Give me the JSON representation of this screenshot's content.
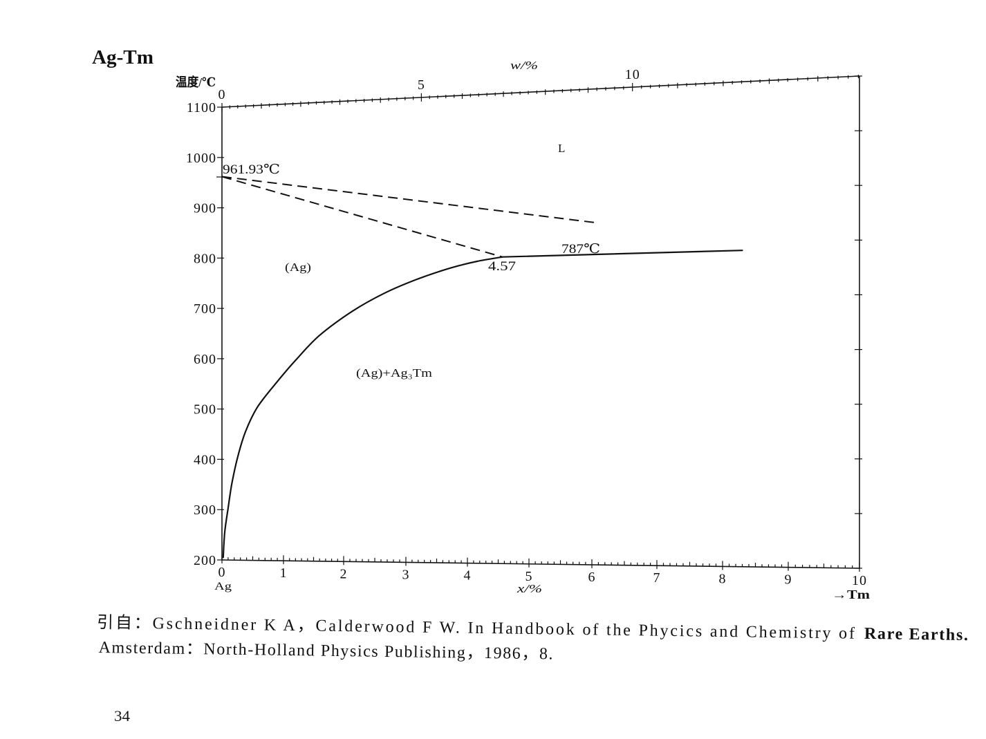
{
  "page": {
    "page_number": "34"
  },
  "citation": {
    "line1": "引自：Gschneidner K A，Calderwood F W. In Handbook of the Phycics and Chemistry of",
    "line1_bold": "Rare Earths.",
    "line2": "Amsterdam：North-Holland Physics Publishing，1986，8."
  },
  "chart_data": {
    "type": "line",
    "title": "Ag-Tm",
    "ylabel": "温度/℃",
    "xlabel": "x/%",
    "x2label": "w/%",
    "x_start_label": "Ag",
    "x_end_label": "→Tm",
    "xlim": [
      0,
      10
    ],
    "ylim": [
      200,
      1100
    ],
    "x_ticks": [
      0,
      1,
      2,
      3,
      4,
      5,
      6,
      7,
      8,
      9,
      10
    ],
    "x2_ticks": [
      0,
      5,
      10
    ],
    "y_ticks": [
      200,
      300,
      400,
      500,
      600,
      700,
      800,
      900,
      1000,
      1100
    ],
    "grid": false,
    "series": [
      {
        "line_style": "solid",
        "points": [
          [
            0.02,
            205
          ],
          [
            0.045,
            255
          ],
          [
            0.1,
            303
          ],
          [
            0.16,
            351
          ],
          [
            0.25,
            402
          ],
          [
            0.38,
            454
          ],
          [
            0.57,
            502
          ],
          [
            0.87,
            549
          ],
          [
            1.21,
            596
          ],
          [
            1.6,
            643
          ],
          [
            2.14,
            689
          ],
          [
            2.64,
            722
          ],
          [
            3.15,
            747
          ],
          [
            3.71,
            768
          ],
          [
            4.16,
            780
          ],
          [
            4.57,
            787
          ]
        ]
      },
      {
        "line_style": "solid",
        "points": [
          [
            4.57,
            787
          ],
          [
            8.3,
            787
          ]
        ]
      },
      {
        "line_style": "dashed",
        "points": [
          [
            0,
            961.93
          ],
          [
            6.06,
            847
          ]
        ]
      },
      {
        "line_style": "dashed",
        "points": [
          [
            0,
            961.93
          ],
          [
            4.57,
            787
          ]
        ]
      }
    ],
    "annotations": [
      {
        "text": "961.93℃"
      },
      {
        "text": "L"
      },
      {
        "text": "(Ag)"
      },
      {
        "text": "787℃"
      },
      {
        "text": "4.57"
      },
      {
        "text": "(Ag)+Ag₃Tm"
      }
    ],
    "colors": {
      "ink": "#111111",
      "paper": "#ffffff"
    }
  }
}
